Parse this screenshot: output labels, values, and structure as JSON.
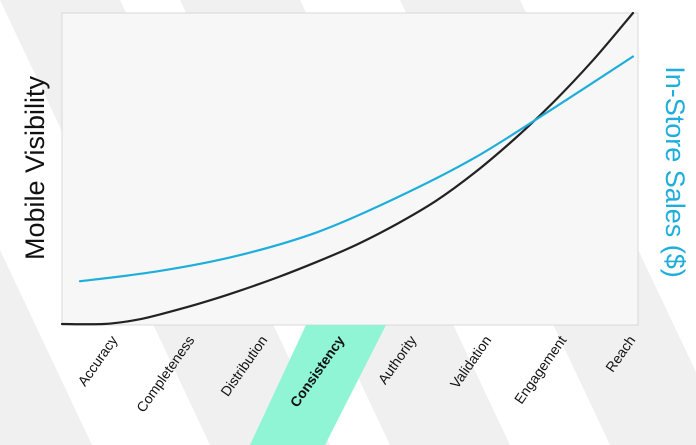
{
  "chart_data": {
    "type": "line",
    "title": "",
    "categories": [
      "Accuracy",
      "Completeness",
      "Distribution",
      "Consistency",
      "Authority",
      "Validation",
      "Engagement",
      "Reach"
    ],
    "highlighted_category": "Consistency",
    "ylabel_left": "Mobile Visibility",
    "ylabel_right": "In-Store Sales ($)",
    "grid": false,
    "legend": "none",
    "series": [
      {
        "axis": "left",
        "color": "#222222",
        "x": [
          0,
          0.3,
          0.7,
          1,
          1.5,
          2,
          2.5,
          3,
          3.5,
          4,
          4.5,
          5,
          5.5,
          6,
          6.5,
          7
        ],
        "values": [
          0,
          0,
          0.5,
          1.2,
          2.6,
          4.2,
          6,
          8,
          10.2,
          12.8,
          15.8,
          19.5,
          23.8,
          28.6,
          34,
          40
        ]
      },
      {
        "axis": "right",
        "color": "#1eaedb",
        "x": [
          0,
          1,
          2,
          3,
          4,
          5,
          6,
          7
        ],
        "values": [
          5.5,
          6.8,
          8.8,
          11.8,
          16.2,
          21.4,
          27.8,
          34.4
        ]
      }
    ],
    "ylim": [
      0,
      40
    ],
    "colors": {
      "left_axis_label": "#111111",
      "right_axis_label": "#1eaedb",
      "highlight": "#8ff5d4",
      "plot_background": "#f7f7f7",
      "plot_border": "#d9d9d9",
      "backdrop_bands": "#f0f0f0"
    }
  }
}
